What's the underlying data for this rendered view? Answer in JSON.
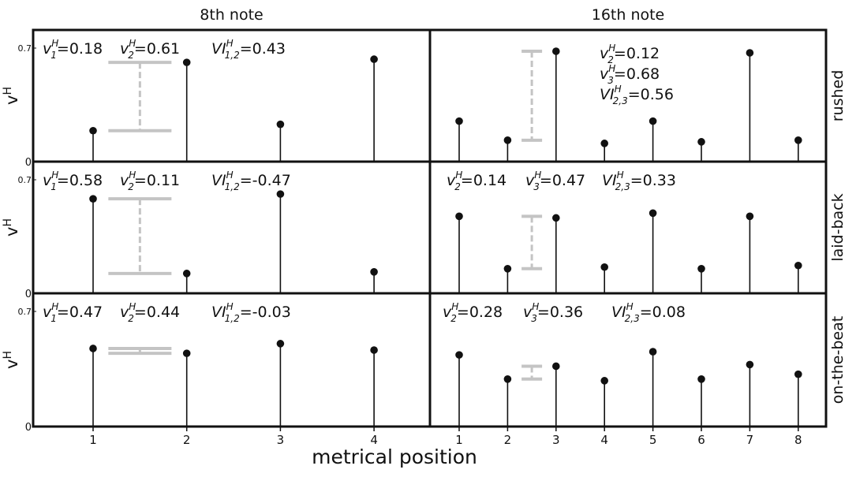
{
  "chart_data": {
    "type": "stem",
    "xlabel": "metrical position",
    "ylabel_main": "v",
    "ylabel_sup": "H",
    "ylim": [
      0,
      0.7
    ],
    "y_ticks": [
      "0",
      "0.7"
    ],
    "column_titles": [
      "8th note",
      "16th note"
    ],
    "row_labels": [
      "rushed",
      "laid-back",
      "on-the-beat"
    ],
    "columns": [
      {
        "title": "8th note",
        "x": [
          1,
          2,
          3,
          4
        ],
        "x_tick_labels": [
          "1",
          "2",
          "3",
          "4"
        ]
      },
      {
        "title": "16th note",
        "x": [
          1,
          2,
          3,
          4,
          5,
          6,
          7,
          8
        ],
        "x_tick_labels": [
          "1",
          "2",
          "3",
          "4",
          "5",
          "6",
          "7",
          "8"
        ]
      }
    ],
    "panels": [
      {
        "row": 0,
        "col": 0,
        "values": [
          0.18,
          0.61,
          0.22,
          0.63
        ],
        "bracket": {
          "x": 1.5,
          "low": 0.18,
          "high": 0.61
        },
        "annotations": [
          {
            "main": "v",
            "sub": "1",
            "sup": "H",
            "value": "=0.18"
          },
          {
            "main": "v",
            "sub": "2",
            "sup": "H",
            "value": "=0.61"
          },
          {
            "main": "VI",
            "sub": "1,2",
            "sup": "H",
            "value": "=0.43"
          }
        ]
      },
      {
        "row": 0,
        "col": 1,
        "values": [
          0.24,
          0.12,
          0.68,
          0.1,
          0.24,
          0.11,
          0.67,
          0.12
        ],
        "bracket": {
          "x": 2.5,
          "low": 0.12,
          "high": 0.68
        },
        "annotations": [
          {
            "main": "v",
            "sub": "2",
            "sup": "H",
            "value": "=0.12"
          },
          {
            "main": "v",
            "sub": "3",
            "sup": "H",
            "value": "=0.68"
          },
          {
            "main": "VI",
            "sub": "2,3",
            "sup": "H",
            "value": "=0.56"
          }
        ]
      },
      {
        "row": 1,
        "col": 0,
        "values": [
          0.58,
          0.11,
          0.61,
          0.12
        ],
        "bracket": {
          "x": 1.5,
          "low": 0.11,
          "high": 0.58
        },
        "annotations": [
          {
            "main": "v",
            "sub": "1",
            "sup": "H",
            "value": "=0.58"
          },
          {
            "main": "v",
            "sub": "2",
            "sup": "H",
            "value": "=0.11"
          },
          {
            "main": "VI",
            "sub": "1,2",
            "sup": "H",
            "value": "=-0.47"
          }
        ]
      },
      {
        "row": 1,
        "col": 1,
        "values": [
          0.47,
          0.14,
          0.46,
          0.15,
          0.49,
          0.14,
          0.47,
          0.16
        ],
        "bracket": {
          "x": 2.5,
          "low": 0.14,
          "high": 0.47
        },
        "annotations": [
          {
            "main": "v",
            "sub": "2",
            "sup": "H",
            "value": "=0.14"
          },
          {
            "main": "v",
            "sub": "3",
            "sup": "H",
            "value": "=0.47"
          },
          {
            "main": "VI",
            "sub": "2,3",
            "sup": "H",
            "value": "=0.33"
          }
        ]
      },
      {
        "row": 2,
        "col": 0,
        "values": [
          0.47,
          0.44,
          0.5,
          0.46
        ],
        "bracket": {
          "x": 1.5,
          "low": 0.44,
          "high": 0.47
        },
        "annotations": [
          {
            "main": "v",
            "sub": "1",
            "sup": "H",
            "value": "=0.47"
          },
          {
            "main": "v",
            "sub": "2",
            "sup": "H",
            "value": "=0.44"
          },
          {
            "main": "VI",
            "sub": "1,2",
            "sup": "H",
            "value": "=-0.03"
          }
        ]
      },
      {
        "row": 2,
        "col": 1,
        "values": [
          0.43,
          0.28,
          0.36,
          0.27,
          0.45,
          0.28,
          0.37,
          0.31
        ],
        "bracket": {
          "x": 2.5,
          "low": 0.28,
          "high": 0.36
        },
        "annotations": [
          {
            "main": "v",
            "sub": "2",
            "sup": "H",
            "value": "=0.28"
          },
          {
            "main": "v",
            "sub": "3",
            "sup": "H",
            "value": "=0.36"
          },
          {
            "main": "VI",
            "sub": "2,3",
            "sup": "H",
            "value": "=0.08"
          }
        ]
      }
    ],
    "grid": false
  }
}
